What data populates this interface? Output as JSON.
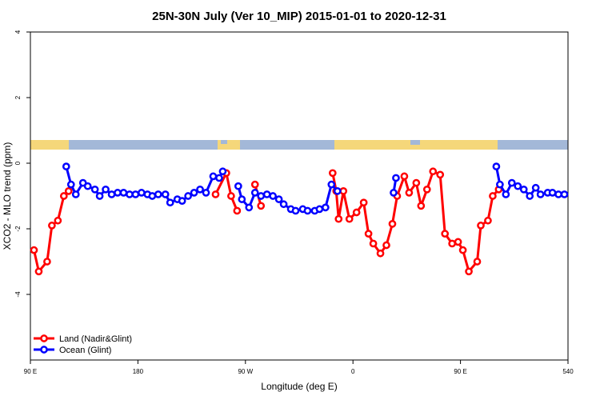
{
  "chart_data": {
    "type": "line",
    "title": "25N-30N July (Ver 10_MIP)   2015-01-01 to 2020-12-31",
    "x_label": "Longitude (deg E)",
    "y_label": "XCO2 - MLO trend (ppm)",
    "xlim": [
      90,
      540
    ],
    "xticks": [
      {
        "value": 90,
        "label": "90 E"
      },
      180,
      {
        "value": 270,
        "label": "90 W"
      },
      {
        "value": 360,
        "label": "0"
      },
      {
        "value": 450,
        "label": "90 E"
      },
      540
    ],
    "ylim": [
      -6,
      4
    ],
    "yticks": [
      -4,
      -2,
      0,
      2,
      4
    ],
    "legend": "bottom-left",
    "series": [
      {
        "name": "Land (Nadir&Glint)",
        "color": "#ff0000",
        "x": [
          93,
          97,
          104,
          108,
          113,
          118,
          122,
          null,
          245,
          254,
          258,
          263,
          null,
          278,
          283,
          null,
          343,
          346,
          348,
          352,
          357,
          363,
          369,
          373,
          377,
          383,
          388,
          393,
          397,
          403,
          407,
          413,
          417,
          422,
          427,
          433,
          437,
          443,
          448,
          452,
          457,
          464,
          467,
          473,
          477,
          482
        ],
        "values": [
          -2.65,
          -3.3,
          -3.0,
          -1.9,
          -1.75,
          -1.0,
          -0.85,
          null,
          -0.95,
          -0.3,
          -1.0,
          -1.45,
          null,
          -0.65,
          -1.3,
          null,
          -0.3,
          -0.85,
          -1.7,
          -0.85,
          -1.7,
          -1.5,
          -1.2,
          -2.15,
          -2.45,
          -2.75,
          -2.5,
          -1.85,
          -1.0,
          -0.4,
          -0.9,
          -0.6,
          -1.3,
          -0.8,
          -0.25,
          -0.35,
          -2.15,
          -2.45,
          -2.4,
          -2.65,
          -3.3,
          -3.0,
          -1.9,
          -1.75,
          -1.0,
          -0.8
        ]
      },
      {
        "name": "Ocean (Glint)",
        "color": "#0000ff",
        "x": [
          120,
          124,
          128,
          134,
          138,
          144,
          148,
          153,
          158,
          163,
          168,
          173,
          178,
          183,
          188,
          192,
          197,
          203,
          207,
          213,
          217,
          222,
          227,
          232,
          237,
          243,
          248,
          251,
          null,
          264,
          267,
          273,
          278,
          283,
          288,
          293,
          298,
          302,
          308,
          312,
          318,
          322,
          328,
          332,
          337,
          342,
          347,
          null,
          394,
          396,
          null,
          480,
          483,
          488,
          493,
          498,
          503,
          508,
          513,
          517,
          523,
          527,
          532,
          537
        ],
        "values": [
          -0.1,
          -0.65,
          -0.95,
          -0.6,
          -0.7,
          -0.8,
          -1.0,
          -0.8,
          -0.95,
          -0.9,
          -0.9,
          -0.95,
          -0.95,
          -0.9,
          -0.95,
          -1.0,
          -0.95,
          -0.95,
          -1.2,
          -1.1,
          -1.15,
          -1.0,
          -0.9,
          -0.8,
          -0.9,
          -0.4,
          -0.45,
          -0.25,
          null,
          -0.7,
          -1.1,
          -1.35,
          -0.9,
          -1.0,
          -0.95,
          -1.0,
          -1.1,
          -1.25,
          -1.4,
          -1.45,
          -1.4,
          -1.45,
          -1.45,
          -1.4,
          -1.35,
          -0.65,
          -0.85,
          null,
          -0.9,
          -0.45,
          null,
          -0.1,
          -0.65,
          -0.95,
          -0.6,
          -0.7,
          -0.8,
          -1.0,
          -0.75,
          -0.95,
          -0.9,
          -0.9,
          -0.95,
          -0.95
        ]
      }
    ]
  }
}
